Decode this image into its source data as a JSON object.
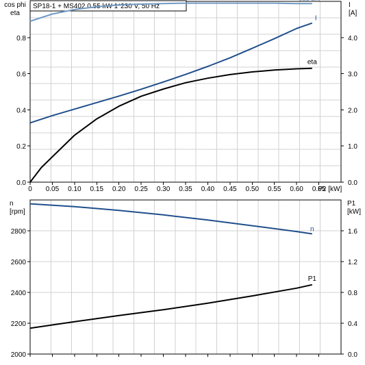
{
  "chart_data": [
    {
      "type": "line",
      "title": "SP18-1 + MS402   0.55 kW   1*230 V, 50 Hz",
      "xlabel": "P2 [kW]",
      "x_ticks": [
        "0",
        "0.05",
        "0.10",
        "0.15",
        "0.20",
        "0.25",
        "0.30",
        "0.35",
        "0.40",
        "0.45",
        "0.50",
        "0.55",
        "0.60",
        "0.65"
      ],
      "xlim": [
        0,
        0.7
      ],
      "ylabel_left": [
        "cos phi",
        "eta"
      ],
      "ylim_left": [
        0,
        1.0
      ],
      "y_ticks_left": [
        "0.0",
        "0.2",
        "0.4",
        "0.6",
        "0.8"
      ],
      "ylabel_right": [
        "I",
        "[A]"
      ],
      "ylim_right": [
        0,
        5.0
      ],
      "y_ticks_right": [
        "0.0",
        "1.0",
        "2.0",
        "3.0",
        "4.0"
      ],
      "grid": true,
      "series": [
        {
          "name": "cos phi",
          "axis": "left",
          "color": "#7199c4",
          "x": [
            0,
            0.05,
            0.1,
            0.15,
            0.2,
            0.25,
            0.3,
            0.35,
            0.4,
            0.45,
            0.5,
            0.55,
            0.6,
            0.635
          ],
          "y": [
            0.89,
            0.93,
            0.955,
            0.97,
            0.98,
            0.985,
            0.988,
            0.99,
            0.99,
            0.99,
            0.99,
            0.99,
            0.988,
            0.988
          ]
        },
        {
          "name": "I",
          "axis": "right",
          "color": "#1f4e8c",
          "x": [
            0,
            0.05,
            0.1,
            0.15,
            0.2,
            0.25,
            0.3,
            0.35,
            0.4,
            0.45,
            0.5,
            0.55,
            0.6,
            0.635
          ],
          "y": [
            1.64,
            1.84,
            2.02,
            2.2,
            2.38,
            2.57,
            2.77,
            2.98,
            3.2,
            3.44,
            3.7,
            3.97,
            4.25,
            4.4
          ]
        },
        {
          "name": "eta",
          "axis": "left",
          "color": "#000000",
          "x": [
            0,
            0.025,
            0.05,
            0.1,
            0.15,
            0.2,
            0.25,
            0.3,
            0.35,
            0.4,
            0.45,
            0.5,
            0.55,
            0.6,
            0.635
          ],
          "y": [
            0.0,
            0.08,
            0.14,
            0.26,
            0.35,
            0.42,
            0.475,
            0.515,
            0.55,
            0.575,
            0.595,
            0.61,
            0.62,
            0.627,
            0.63
          ]
        }
      ]
    },
    {
      "type": "line",
      "title": "",
      "xlabel": "",
      "xlim": [
        0,
        0.7
      ],
      "ylabel_left": [
        "n",
        "[rpm]"
      ],
      "ylim_left": [
        2000,
        3000
      ],
      "y_ticks_left": [
        "2000",
        "2200",
        "2400",
        "2600",
        "2800"
      ],
      "ylabel_right": [
        "P1",
        "[kW]"
      ],
      "ylim_right": [
        0,
        2.0
      ],
      "y_ticks_right": [
        "0.0",
        "0.4",
        "0.8",
        "1.2",
        "1.6"
      ],
      "grid": true,
      "series": [
        {
          "name": "n",
          "axis": "left",
          "color": "#1f4e8c",
          "x": [
            0,
            0.1,
            0.2,
            0.3,
            0.4,
            0.5,
            0.6,
            0.635
          ],
          "y": [
            2975,
            2957,
            2932,
            2903,
            2870,
            2833,
            2795,
            2780
          ]
        },
        {
          "name": "P1",
          "axis": "right",
          "color": "#000000",
          "x": [
            0,
            0.1,
            0.2,
            0.3,
            0.4,
            0.5,
            0.6,
            0.635
          ],
          "y": [
            0.335,
            0.42,
            0.5,
            0.575,
            0.66,
            0.755,
            0.855,
            0.9
          ]
        }
      ]
    }
  ]
}
